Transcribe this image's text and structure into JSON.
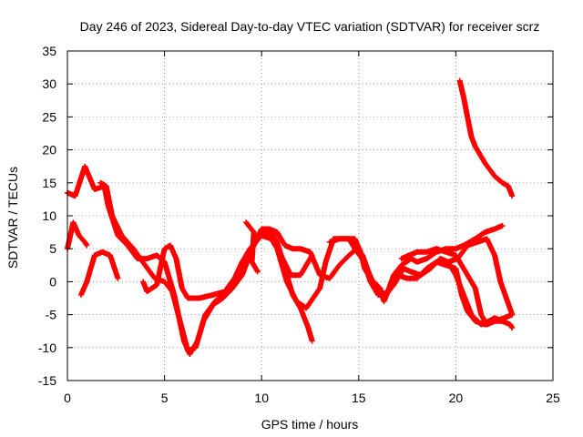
{
  "chart_data": {
    "type": "scatter",
    "title": "Day 246 of 2023, Sidereal Day-to-day VTEC variation (SDTVAR) for receiver scrz",
    "xlabel": "GPS time / hours",
    "ylabel": "SDTVAR / TECUs",
    "xlim": [
      0,
      25
    ],
    "ylim": [
      -15,
      35
    ],
    "xticks": [
      "0",
      "5",
      "10",
      "15",
      "20",
      "25"
    ],
    "yticks": [
      "-15",
      "-10",
      "-5",
      "0",
      "5",
      "10",
      "15",
      "20",
      "25",
      "30",
      "35"
    ],
    "grid": true,
    "legend": "none",
    "marker": "+",
    "series_color": "#ff0000",
    "series": [
      {
        "name": "track-1",
        "points": [
          [
            0.0,
            13.5
          ],
          [
            0.4,
            13.0
          ],
          [
            0.9,
            17.5
          ],
          [
            1.4,
            14.0
          ],
          [
            1.9,
            14.5
          ],
          [
            2.1,
            11.5
          ],
          [
            2.6,
            7.0
          ],
          [
            3.1,
            5.5
          ],
          [
            3.6,
            3.5
          ],
          [
            4.1,
            3.5
          ],
          [
            4.6,
            4.0
          ],
          [
            5.0,
            3.0
          ],
          [
            5.5,
            -2.0
          ],
          [
            6.0,
            -9.0
          ],
          [
            6.3,
            -11.0
          ],
          [
            6.7,
            -9.0
          ],
          [
            7.1,
            -5.0
          ],
          [
            7.6,
            -3.0
          ],
          [
            8.2,
            -1.5
          ],
          [
            8.7,
            0.0
          ],
          [
            9.2,
            3.0
          ],
          [
            9.6,
            5.5
          ],
          [
            10.0,
            7.5
          ],
          [
            10.4,
            7.5
          ],
          [
            10.7,
            6.0
          ],
          [
            11.0,
            4.0
          ],
          [
            11.5,
            1.0
          ],
          [
            12.0,
            1.0
          ],
          [
            12.5,
            3.5
          ],
          [
            12.6,
            4.0
          ]
        ]
      },
      {
        "name": "track-2",
        "points": [
          [
            0.0,
            5.0
          ],
          [
            0.3,
            9.0
          ],
          [
            0.6,
            7.0
          ],
          [
            0.9,
            6.0
          ],
          [
            1.0,
            5.5
          ]
        ]
      },
      {
        "name": "track-3",
        "points": [
          [
            0.7,
            -2.0
          ],
          [
            1.0,
            0.0
          ],
          [
            1.4,
            4.0
          ],
          [
            1.8,
            4.5
          ],
          [
            2.2,
            4.0
          ],
          [
            2.6,
            0.5
          ]
        ]
      },
      {
        "name": "track-4",
        "points": [
          [
            1.7,
            15.0
          ],
          [
            2.0,
            14.5
          ],
          [
            2.3,
            10.0
          ],
          [
            2.8,
            7.0
          ],
          [
            3.4,
            5.0
          ],
          [
            4.0,
            2.5
          ],
          [
            4.5,
            0.5
          ],
          [
            5.0,
            0.0
          ],
          [
            5.4,
            -1.5
          ],
          [
            5.8,
            -6.0
          ],
          [
            6.2,
            -10.5
          ],
          [
            6.6,
            -10.0
          ],
          [
            7.0,
            -6.0
          ],
          [
            7.5,
            -3.5
          ],
          [
            8.0,
            -2.5
          ],
          [
            8.5,
            -1.0
          ],
          [
            9.0,
            1.0
          ],
          [
            9.5,
            5.0
          ],
          [
            10.0,
            8.0
          ],
          [
            10.4,
            8.0
          ],
          [
            10.8,
            6.0
          ],
          [
            11.2,
            2.0
          ],
          [
            11.6,
            -2.0
          ],
          [
            12.0,
            -4.0
          ],
          [
            12.4,
            -7.0
          ],
          [
            12.6,
            -9.0
          ]
        ]
      },
      {
        "name": "track-5",
        "points": [
          [
            3.9,
            0.0
          ],
          [
            4.1,
            -1.5
          ],
          [
            4.6,
            -0.5
          ],
          [
            5.0,
            5.0
          ],
          [
            5.3,
            5.5
          ],
          [
            5.6,
            3.5
          ],
          [
            5.9,
            -1.0
          ],
          [
            6.2,
            -2.5
          ],
          [
            6.8,
            -2.5
          ],
          [
            7.5,
            -2.0
          ],
          [
            8.1,
            -1.5
          ],
          [
            8.6,
            0.5
          ],
          [
            9.0,
            3.0
          ],
          [
            9.4,
            5.0
          ],
          [
            10.0,
            7.0
          ],
          [
            10.5,
            6.5
          ],
          [
            10.8,
            5.0
          ],
          [
            11.1,
            2.0
          ],
          [
            11.3,
            0.0
          ],
          [
            11.8,
            -3.0
          ],
          [
            12.3,
            -4.0
          ],
          [
            13.0,
            -1.0
          ],
          [
            13.3,
            3.0
          ],
          [
            13.7,
            6.5
          ],
          [
            14.3,
            6.5
          ],
          [
            14.8,
            6.5
          ],
          [
            15.1,
            4.5
          ],
          [
            15.3,
            2.0
          ],
          [
            15.6,
            0.5
          ],
          [
            16.1,
            -1.0
          ],
          [
            16.3,
            -3.0
          ],
          [
            16.7,
            0.0
          ],
          [
            17.0,
            1.0
          ],
          [
            17.5,
            0.5
          ],
          [
            18.0,
            0.5
          ],
          [
            18.5,
            2.0
          ],
          [
            19.0,
            3.0
          ],
          [
            19.5,
            2.5
          ],
          [
            20.0,
            2.0
          ],
          [
            20.3,
            -2.0
          ],
          [
            20.6,
            -4.5
          ],
          [
            21.0,
            -6.0
          ],
          [
            21.5,
            -6.5
          ],
          [
            22.0,
            -6.0
          ],
          [
            22.5,
            -5.5
          ],
          [
            22.9,
            -5.0
          ]
        ]
      },
      {
        "name": "track-6",
        "points": [
          [
            9.2,
            9.0
          ],
          [
            9.6,
            7.5
          ],
          [
            9.5,
            3.0
          ],
          [
            9.8,
            1.5
          ]
        ]
      },
      {
        "name": "track-7",
        "points": [
          [
            10.4,
            8.0
          ],
          [
            10.8,
            7.5
          ],
          [
            11.2,
            5.5
          ],
          [
            11.6,
            5.0
          ],
          [
            12.0,
            5.0
          ],
          [
            12.5,
            4.5
          ],
          [
            13.0,
            1.0
          ],
          [
            13.5,
            0.5
          ],
          [
            14.0,
            2.5
          ],
          [
            14.5,
            4.0
          ],
          [
            14.9,
            5.0
          ],
          [
            15.2,
            4.0
          ],
          [
            15.5,
            1.5
          ],
          [
            15.8,
            -0.5
          ],
          [
            16.2,
            -2.0
          ],
          [
            16.5,
            -1.5
          ],
          [
            16.8,
            1.0
          ],
          [
            17.2,
            2.5
          ],
          [
            17.7,
            3.5
          ],
          [
            18.0,
            3.0
          ],
          [
            18.5,
            3.5
          ],
          [
            19.0,
            4.5
          ],
          [
            19.5,
            5.0
          ],
          [
            20.0,
            5.0
          ],
          [
            20.4,
            5.5
          ],
          [
            21.0,
            6.5
          ],
          [
            21.5,
            7.5
          ],
          [
            22.0,
            8.0
          ],
          [
            22.4,
            8.5
          ]
        ]
      },
      {
        "name": "track-8",
        "points": [
          [
            13.5,
            6.0
          ],
          [
            14.0,
            6.5
          ],
          [
            14.5,
            6.5
          ],
          [
            14.8,
            5.0
          ],
          [
            15.3,
            3.0
          ],
          [
            15.6,
            0.0
          ],
          [
            16.0,
            -2.0
          ],
          [
            16.4,
            -2.0
          ],
          [
            16.8,
            -0.5
          ],
          [
            17.3,
            2.0
          ],
          [
            17.7,
            1.5
          ],
          [
            18.2,
            1.0
          ],
          [
            18.7,
            2.0
          ],
          [
            19.2,
            3.5
          ],
          [
            19.6,
            3.0
          ],
          [
            20.0,
            1.0
          ],
          [
            20.4,
            -2.0
          ],
          [
            20.8,
            -5.0
          ],
          [
            21.3,
            -6.5
          ],
          [
            21.7,
            -6.0
          ],
          [
            22.0,
            -5.5
          ],
          [
            22.4,
            -6.0
          ],
          [
            22.8,
            -6.5
          ],
          [
            22.9,
            -7.0
          ]
        ]
      },
      {
        "name": "track-9",
        "points": [
          [
            17.2,
            3.5
          ],
          [
            17.6,
            4.0
          ],
          [
            18.0,
            4.5
          ],
          [
            18.5,
            4.5
          ],
          [
            19.0,
            5.0
          ],
          [
            19.5,
            4.5
          ],
          [
            20.0,
            4.0
          ],
          [
            20.5,
            1.5
          ],
          [
            21.0,
            -1.0
          ],
          [
            21.3,
            -5.0
          ],
          [
            21.6,
            -6.5
          ],
          [
            22.0,
            -6.0
          ],
          [
            22.4,
            -6.0
          ]
        ]
      },
      {
        "name": "track-10",
        "points": [
          [
            19.6,
            3.0
          ],
          [
            20.1,
            3.5
          ],
          [
            20.6,
            5.5
          ],
          [
            21.1,
            6.0
          ],
          [
            21.6,
            6.5
          ],
          [
            22.0,
            4.0
          ],
          [
            22.3,
            0.0
          ],
          [
            22.6,
            -2.5
          ],
          [
            22.9,
            -5.0
          ]
        ]
      },
      {
        "name": "track-11",
        "points": [
          [
            20.2,
            30.5
          ],
          [
            20.4,
            28.0
          ],
          [
            20.6,
            25.0
          ],
          [
            20.8,
            22.0
          ],
          [
            21.0,
            20.5
          ],
          [
            21.2,
            19.5
          ],
          [
            21.5,
            18.0
          ],
          [
            22.0,
            16.0
          ],
          [
            22.4,
            15.0
          ],
          [
            22.7,
            14.5
          ],
          [
            22.9,
            13.0
          ]
        ]
      }
    ]
  }
}
